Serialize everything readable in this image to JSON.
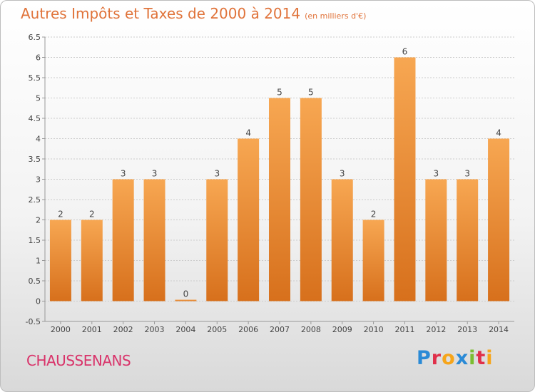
{
  "header": {
    "title": "Autres Impôts et Taxes de 2000 à 2014",
    "units": "(en milliers d'€)"
  },
  "footer": {
    "town": "CHAUSSENANS",
    "logo": "Proxiti"
  },
  "colors": {
    "bar_light": "#f7a752",
    "bar_dark": "#d7701c",
    "title": "#e0733a",
    "town": "#d9336a",
    "grid": "#cccccc",
    "logo": [
      "#2a8ad6",
      "#e0304a",
      "#f6a51a",
      "#2a8ad6",
      "#7bbd31",
      "#e0304a",
      "#f6a51a"
    ]
  },
  "chart_data": {
    "type": "bar",
    "categories": [
      "2000",
      "2001",
      "2002",
      "2003",
      "2004",
      "2005",
      "2006",
      "2007",
      "2008",
      "2009",
      "2010",
      "2011",
      "2012",
      "2013",
      "2014"
    ],
    "values": [
      2,
      2,
      3,
      3,
      0,
      3,
      4,
      5,
      5,
      3,
      2,
      6,
      3,
      3,
      4
    ],
    "ylim": [
      -0.5,
      6.5
    ],
    "yticks": [
      "-0.5",
      "0",
      "0.5",
      "1",
      "1.5",
      "2",
      "2.5",
      "3",
      "3.5",
      "4",
      "4.5",
      "5",
      "5.5",
      "6",
      "6.5"
    ],
    "grid": true,
    "data_labels": true
  }
}
